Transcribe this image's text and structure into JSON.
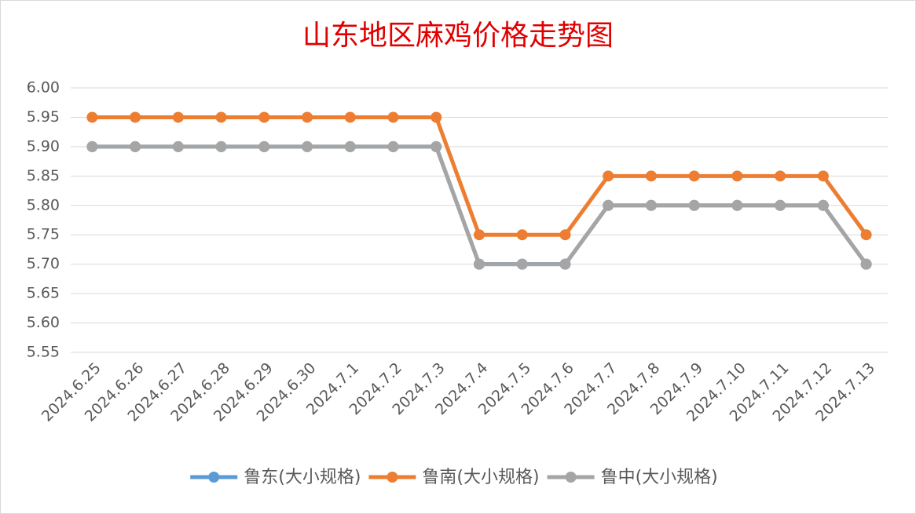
{
  "chart_data": {
    "type": "line",
    "title": "山东地区麻鸡价格走势图",
    "categories": [
      "2024.6.25",
      "2024.6.26",
      "2024.6.27",
      "2024.6.28",
      "2024.6.29",
      "2024.6.30",
      "2024.7.1",
      "2024.7.2",
      "2024.7.3",
      "2024.7.4",
      "2024.7.5",
      "2024.7.6",
      "2024.7.7",
      "2024.7.8",
      "2024.7.9",
      "2024.7.10",
      "2024.7.11",
      "2024.7.12",
      "2024.7.13"
    ],
    "series": [
      {
        "name": "鲁东(大小规格)",
        "color": "#5b9bd5",
        "values": [
          5.9,
          5.9,
          5.9,
          5.9,
          5.9,
          5.9,
          5.9,
          5.9,
          5.9,
          5.7,
          5.7,
          5.7,
          5.8,
          5.8,
          5.8,
          5.8,
          5.8,
          5.8,
          5.7
        ]
      },
      {
        "name": "鲁南(大小规格)",
        "color": "#ed7d31",
        "values": [
          5.95,
          5.95,
          5.95,
          5.95,
          5.95,
          5.95,
          5.95,
          5.95,
          5.95,
          5.75,
          5.75,
          5.75,
          5.85,
          5.85,
          5.85,
          5.85,
          5.85,
          5.85,
          5.75
        ]
      },
      {
        "name": "鲁中(大小规格)",
        "color": "#a5a5a5",
        "values": [
          5.9,
          5.9,
          5.9,
          5.9,
          5.9,
          5.9,
          5.9,
          5.9,
          5.9,
          5.7,
          5.7,
          5.7,
          5.8,
          5.8,
          5.8,
          5.8,
          5.8,
          5.8,
          5.7
        ]
      }
    ],
    "ylim": [
      5.55,
      6.0
    ],
    "yticks": [
      {
        "value": 5.55,
        "label": "5.55"
      },
      {
        "value": 5.6,
        "label": "5.60"
      },
      {
        "value": 5.65,
        "label": "5.65"
      },
      {
        "value": 5.7,
        "label": "5.70"
      },
      {
        "value": 5.75,
        "label": "5.75"
      },
      {
        "value": 5.8,
        "label": "5.80"
      },
      {
        "value": 5.85,
        "label": "5.85"
      },
      {
        "value": 5.9,
        "label": "5.90"
      },
      {
        "value": 5.95,
        "label": "5.95"
      },
      {
        "value": 6.0,
        "label": "6.00"
      }
    ],
    "grid": true,
    "legend": "bottom"
  }
}
